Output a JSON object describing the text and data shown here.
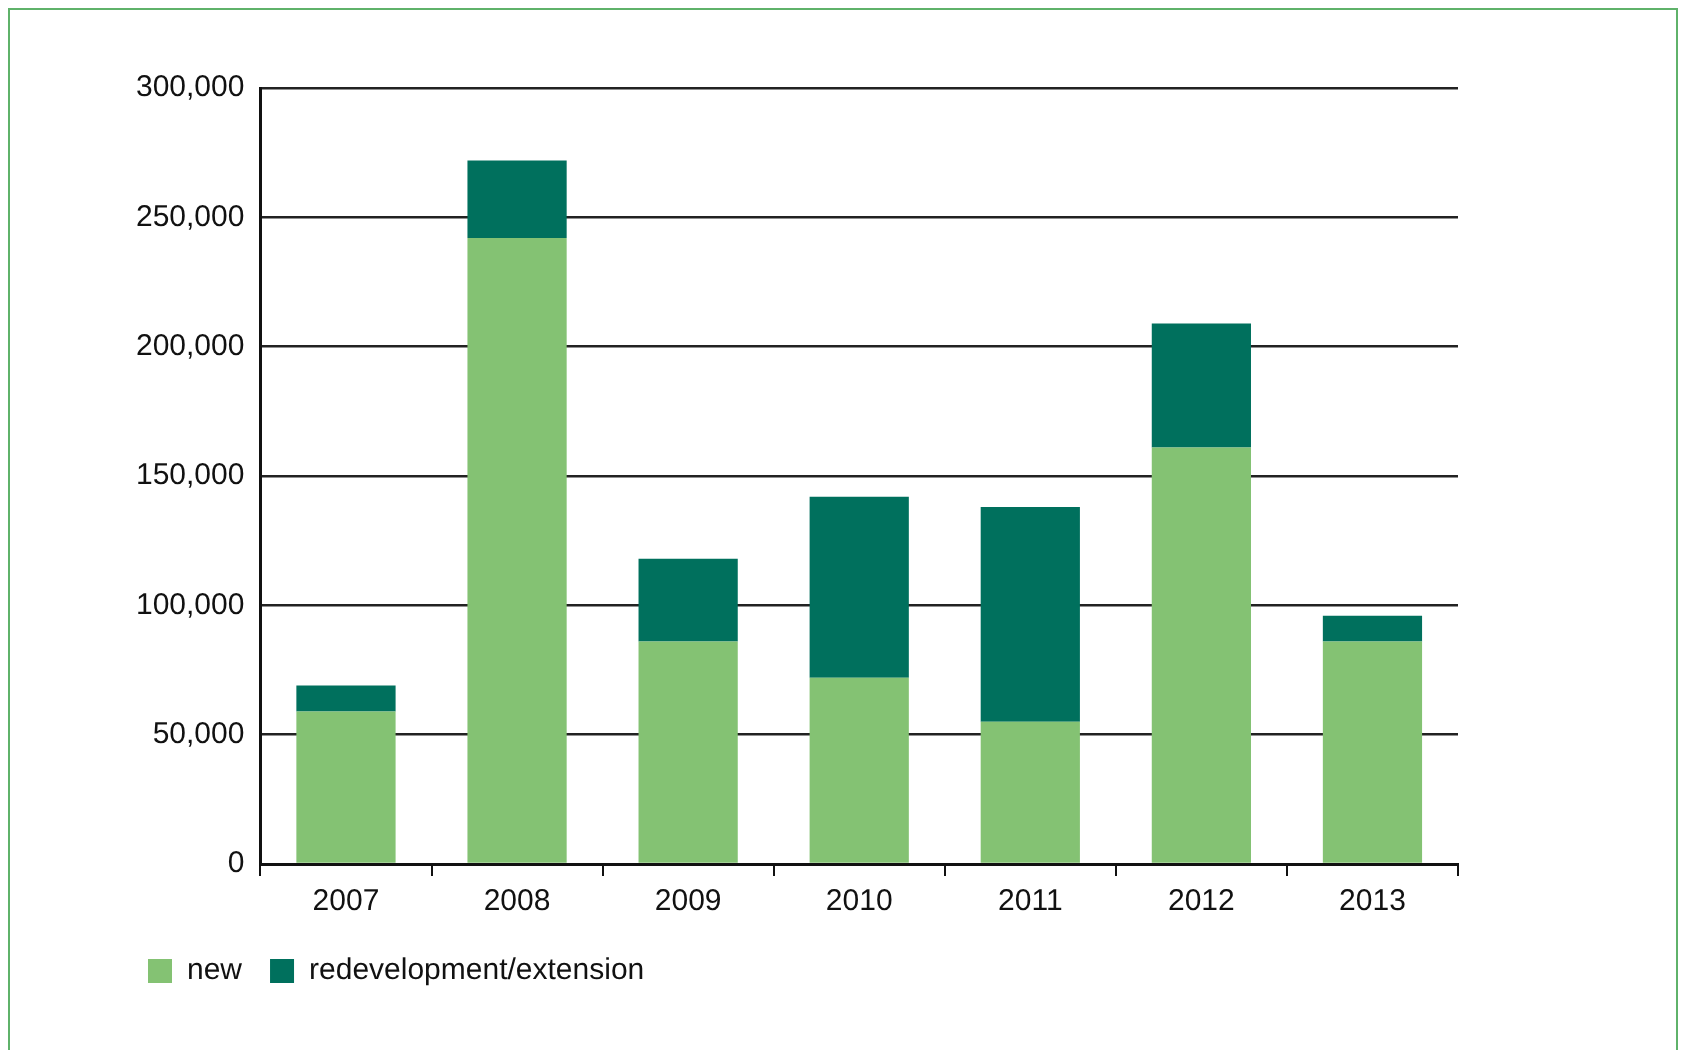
{
  "chart_data": {
    "type": "bar",
    "stacked": true,
    "categories": [
      "2007",
      "2008",
      "2009",
      "2010",
      "2011",
      "2012",
      "2013"
    ],
    "series": [
      {
        "name": "new",
        "color": "#84c273",
        "values": [
          59000,
          242000,
          86000,
          72000,
          55000,
          161000,
          86000
        ]
      },
      {
        "name": "redevelopment/extension",
        "color": "#00705d",
        "values": [
          10000,
          30000,
          32000,
          70000,
          83000,
          48000,
          10000
        ]
      }
    ],
    "ylim": [
      0,
      300000
    ],
    "yticks": [
      0,
      {
        "value": 50000,
        "label": "50,000"
      },
      {
        "value": 100000,
        "label": "100,000"
      },
      {
        "value": 150000,
        "label": "150,000"
      },
      {
        "value": 200000,
        "label": "200,000"
      },
      {
        "value": 250000,
        "label": "250,000"
      },
      {
        "value": 300000,
        "label": "300,000"
      }
    ],
    "grid": "y",
    "legend": "bottom left"
  }
}
